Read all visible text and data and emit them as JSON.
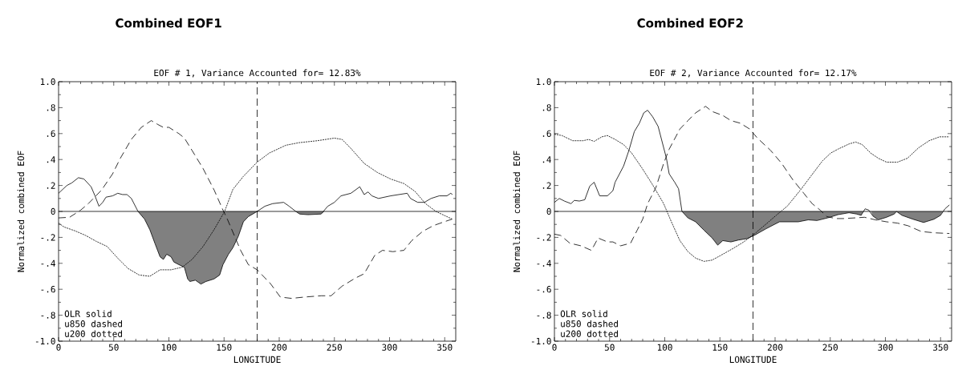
{
  "chart_data": [
    {
      "type": "line",
      "title": "Combined EOF1",
      "subtitle": "EOF # 1,  Variance Accounted for= 12.83%",
      "xlabel": "LONGITUDE",
      "ylabel": "Normalized combined EOF",
      "annotations": [
        "OLR solid",
        "u850 dashed",
        "u200 dotted"
      ],
      "xlim": [
        0,
        360
      ],
      "ylim": [
        -1,
        1
      ],
      "xticks": [
        0,
        50,
        100,
        150,
        200,
        250,
        300,
        350
      ],
      "yticks": [
        {
          "value": -1,
          "label": "-1.0"
        },
        {
          "value": -0.8,
          "label": "-.8"
        },
        {
          "value": -0.6,
          "label": "-.6"
        },
        {
          "value": -0.4,
          "label": "-.4"
        },
        {
          "value": -0.2,
          "label": "-.2"
        },
        0,
        {
          "value": 0.2,
          "label": ".2"
        },
        {
          "value": 0.4,
          "label": ".4"
        },
        {
          "value": 0.6,
          "label": ".6"
        },
        {
          "value": 0.8,
          "label": ".8"
        },
        {
          "value": 1,
          "label": "1.0"
        }
      ],
      "ref_lines": [
        {
          "axis": "x",
          "value": 180,
          "line_style": "dashed"
        },
        {
          "axis": "y",
          "value": 0,
          "line_style": "solid"
        }
      ],
      "series": [
        {
          "type": "area",
          "color": "#808080",
          "x": [
            72,
            78,
            82.7,
            87.5,
            92,
            95,
            98,
            102,
            104.5,
            109,
            114,
            117,
            119,
            124,
            129,
            133.6,
            141,
            146,
            149,
            154,
            158,
            163,
            167.5,
            172,
            180,
            215,
            218.5,
            226,
            238,
            241
          ],
          "values": [
            0,
            -0.06,
            -0.14,
            -0.25,
            -0.35,
            -0.37,
            -0.33,
            -0.35,
            -0.39,
            -0.41,
            -0.43,
            -0.52,
            -0.54,
            -0.53,
            -0.56,
            -0.54,
            -0.52,
            -0.49,
            -0.41,
            -0.33,
            -0.28,
            -0.19,
            -0.08,
            -0.04,
            0,
            0,
            -0.02,
            -0.025,
            -0.02,
            0
          ]
        },
        {
          "color": "#000000",
          "line_style": "solid",
          "x": [
            0,
            7.5,
            12,
            18,
            23,
            29.5,
            33,
            36.6,
            40,
            43,
            49,
            53.6,
            58,
            62,
            66,
            72,
            78,
            82.7,
            87.5,
            92,
            95,
            98,
            102,
            104.5,
            109,
            114,
            117,
            119,
            124,
            129,
            133.6,
            141,
            146,
            149,
            154,
            158,
            163,
            167.5,
            172,
            180,
            187,
            194,
            204,
            209,
            215,
            218.5,
            226,
            238,
            244,
            250,
            256,
            265,
            273,
            277,
            280.5,
            284,
            290,
            301,
            316,
            319,
            325.5,
            331.6,
            337.6,
            345,
            352,
            355.5,
            357
          ],
          "values": [
            0.14,
            0.2,
            0.22,
            0.26,
            0.25,
            0.19,
            0.12,
            0.04,
            0.07,
            0.11,
            0.12,
            0.14,
            0.13,
            0.13,
            0.1,
            0,
            -0.06,
            -0.14,
            -0.25,
            -0.35,
            -0.37,
            -0.33,
            -0.35,
            -0.39,
            -0.41,
            -0.43,
            -0.52,
            -0.54,
            -0.53,
            -0.56,
            -0.54,
            -0.52,
            -0.49,
            -0.41,
            -0.33,
            -0.28,
            -0.19,
            -0.08,
            -0.04,
            0,
            0.04,
            0.06,
            0.07,
            0.04,
            0,
            -0.02,
            -0.025,
            -0.02,
            0.04,
            0.07,
            0.12,
            0.14,
            0.19,
            0.13,
            0.15,
            0.12,
            0.1,
            0.12,
            0.14,
            0.1,
            0.07,
            0.07,
            0.1,
            0.12,
            0.12,
            0.14,
            0.13
          ]
        },
        {
          "color": "#000000",
          "line_style": "dashed",
          "x": [
            0,
            10,
            20,
            27,
            39,
            49,
            56,
            66,
            75,
            84,
            90,
            95,
            100,
            109,
            114,
            121,
            131,
            141,
            148.5,
            153,
            160,
            165,
            172,
            180,
            192,
            201,
            211,
            223,
            238,
            247,
            257,
            269,
            277,
            286.5,
            293.6,
            303,
            313,
            320,
            330,
            339.6,
            349.5,
            356.5
          ],
          "values": [
            -0.05,
            -0.045,
            0.01,
            0.06,
            0.165,
            0.29,
            0.41,
            0.556,
            0.648,
            0.7,
            0.67,
            0.648,
            0.648,
            0.6,
            0.566,
            0.47,
            0.33,
            0.165,
            0.02,
            -0.06,
            -0.2,
            -0.3,
            -0.41,
            -0.45,
            -0.556,
            -0.66,
            -0.67,
            -0.66,
            -0.65,
            -0.65,
            -0.576,
            -0.514,
            -0.48,
            -0.34,
            -0.3,
            -0.31,
            -0.3,
            -0.226,
            -0.154,
            -0.11,
            -0.08,
            -0.06
          ]
        },
        {
          "color": "#000000",
          "line_style": "dotted",
          "x": [
            0,
            5,
            15,
            24.5,
            34,
            44,
            53.6,
            63,
            73,
            82.7,
            92,
            102,
            112,
            121,
            131,
            141,
            150.5,
            158,
            167.5,
            180,
            191,
            206,
            218,
            234.6,
            250,
            257,
            264.5,
            277,
            289,
            301,
            313,
            323,
            332.6,
            342,
            352,
            357
          ],
          "values": [
            -0.09,
            -0.12,
            -0.15,
            -0.185,
            -0.23,
            -0.27,
            -0.36,
            -0.44,
            -0.49,
            -0.5,
            -0.45,
            -0.45,
            -0.43,
            -0.37,
            -0.27,
            -0.14,
            0,
            0.17,
            0.27,
            0.38,
            0.45,
            0.51,
            0.53,
            0.545,
            0.565,
            0.555,
            0.49,
            0.37,
            0.3,
            0.25,
            0.215,
            0.155,
            0.06,
            0,
            -0.04,
            -0.06
          ]
        }
      ]
    },
    {
      "type": "line",
      "title": "Combined EOF2",
      "subtitle": "EOF # 2,  Variance Accounted for= 12.17%",
      "xlabel": "LONGITUDE",
      "ylabel": "Normalized combined EOF",
      "annotations": [
        "OLR solid",
        "u850 dashed",
        "u200 dotted"
      ],
      "xlim": [
        0,
        360
      ],
      "ylim": [
        -1,
        1
      ],
      "xticks": [
        0,
        50,
        100,
        150,
        200,
        250,
        300,
        350
      ],
      "yticks": [
        {
          "value": -1,
          "label": "-1.0"
        },
        {
          "value": -0.8,
          "label": "-.8"
        },
        {
          "value": -0.6,
          "label": "-.6"
        },
        {
          "value": -0.4,
          "label": "-.4"
        },
        {
          "value": -0.2,
          "label": "-.2"
        },
        0,
        {
          "value": 0.2,
          "label": ".2"
        },
        {
          "value": 0.4,
          "label": ".4"
        },
        {
          "value": 0.6,
          "label": ".6"
        },
        {
          "value": 0.8,
          "label": ".8"
        },
        {
          "value": 1,
          "label": "1.0"
        }
      ],
      "ref_lines": [
        {
          "axis": "x",
          "value": 180,
          "line_style": "dashed"
        },
        {
          "axis": "y",
          "value": 0,
          "line_style": "solid"
        }
      ],
      "series": [
        {
          "type": "area",
          "color": "#808080",
          "x": [
            115.6,
            121,
            128,
            135.6,
            143,
            148,
            152.6,
            160,
            167,
            174.5,
            181,
            191.5,
            204,
            213.6,
            221,
            230,
            238,
            247.6,
            257,
            267,
            274,
            278,
            280,
            281.6,
            285,
            287,
            288.6,
            293.5,
            301,
            308,
            310,
            315,
            325,
            334.6,
            344,
            350,
            352
          ],
          "values": [
            0,
            -0.05,
            -0.08,
            -0.145,
            -0.205,
            -0.26,
            -0.225,
            -0.235,
            -0.22,
            -0.21,
            -0.185,
            -0.135,
            -0.08,
            -0.08,
            -0.08,
            -0.065,
            -0.07,
            -0.05,
            -0.025,
            -0.01,
            -0.02,
            -0.03,
            0,
            0,
            0,
            0,
            -0.035,
            -0.065,
            -0.045,
            -0.02,
            0,
            -0.03,
            -0.06,
            -0.085,
            -0.06,
            -0.03,
            0
          ]
        },
        {
          "color": "#000000",
          "line_style": "solid",
          "x": [
            0,
            4.4,
            9,
            15,
            18,
            22.6,
            27.5,
            32,
            36,
            41,
            48,
            53,
            55,
            62.7,
            67.5,
            72.4,
            77,
            81,
            84.5,
            89,
            94,
            101.5,
            104,
            109,
            112.5,
            115.6,
            121,
            128,
            135.6,
            143,
            148,
            152.6,
            160,
            167,
            174.5,
            181,
            191.5,
            204,
            213.6,
            221,
            230,
            238,
            247.6,
            257,
            267,
            274,
            278,
            281.6,
            285,
            288.6,
            293.5,
            301,
            308,
            310,
            315,
            325,
            334.6,
            344,
            350,
            354,
            358
          ],
          "values": [
            0.07,
            0.1,
            0.08,
            0.06,
            0.085,
            0.08,
            0.09,
            0.195,
            0.225,
            0.12,
            0.12,
            0.16,
            0.225,
            0.35,
            0.47,
            0.615,
            0.68,
            0.76,
            0.78,
            0.73,
            0.655,
            0.41,
            0.29,
            0.225,
            0.175,
            0,
            -0.05,
            -0.08,
            -0.145,
            -0.205,
            -0.26,
            -0.225,
            -0.235,
            -0.22,
            -0.21,
            -0.185,
            -0.135,
            -0.08,
            -0.08,
            -0.08,
            -0.065,
            -0.07,
            -0.05,
            -0.025,
            -0.01,
            -0.02,
            -0.03,
            0.02,
            0.01,
            -0.035,
            -0.065,
            -0.045,
            -0.02,
            0,
            -0.03,
            -0.06,
            -0.085,
            -0.06,
            -0.03,
            0.02,
            0.05
          ]
        },
        {
          "color": "#000000",
          "line_style": "dashed",
          "x": [
            0,
            5.6,
            14,
            24,
            33.5,
            39.6,
            48,
            53,
            60,
            69,
            75,
            80,
            84.5,
            92,
            99,
            104,
            113.7,
            121,
            128,
            137,
            143,
            152.6,
            160,
            168.5,
            177,
            184,
            196,
            206,
            216,
            226,
            233.6,
            240.9,
            247,
            255,
            262,
            272,
            281,
            291,
            301,
            311,
            320.4,
            332.6,
            344.8,
            358
          ],
          "values": [
            -0.175,
            -0.185,
            -0.245,
            -0.265,
            -0.3,
            -0.205,
            -0.235,
            -0.235,
            -0.265,
            -0.245,
            -0.145,
            -0.06,
            0.06,
            0.185,
            0.37,
            0.48,
            0.635,
            0.7,
            0.76,
            0.81,
            0.77,
            0.74,
            0.7,
            0.68,
            0.635,
            0.565,
            0.47,
            0.37,
            0.245,
            0.14,
            0.06,
            0.01,
            -0.04,
            -0.055,
            -0.055,
            -0.05,
            -0.045,
            -0.065,
            -0.08,
            -0.09,
            -0.11,
            -0.155,
            -0.165,
            -0.17
          ]
        },
        {
          "color": "#000000",
          "line_style": "dotted",
          "x": [
            0,
            6.8,
            16.5,
            26,
            31,
            36,
            43,
            48,
            55,
            62.7,
            70,
            79.7,
            89,
            99,
            106,
            113.7,
            121,
            128,
            135.6,
            143,
            152.6,
            162,
            171.6,
            181,
            191.5,
            201,
            211,
            223,
            233.6,
            243,
            250.5,
            257,
            267,
            273,
            279,
            286.6,
            293.5,
            301,
            311,
            320,
            330,
            339.6,
            349,
            358
          ],
          "values": [
            0.595,
            0.585,
            0.545,
            0.545,
            0.555,
            0.54,
            0.575,
            0.585,
            0.555,
            0.515,
            0.45,
            0.33,
            0.205,
            0.06,
            -0.08,
            -0.225,
            -0.31,
            -0.36,
            -0.385,
            -0.375,
            -0.33,
            -0.285,
            -0.235,
            -0.175,
            -0.1,
            -0.03,
            0.04,
            0.165,
            0.285,
            0.39,
            0.45,
            0.48,
            0.52,
            0.535,
            0.515,
            0.45,
            0.41,
            0.38,
            0.38,
            0.41,
            0.49,
            0.545,
            0.575,
            0.575
          ]
        }
      ]
    }
  ]
}
